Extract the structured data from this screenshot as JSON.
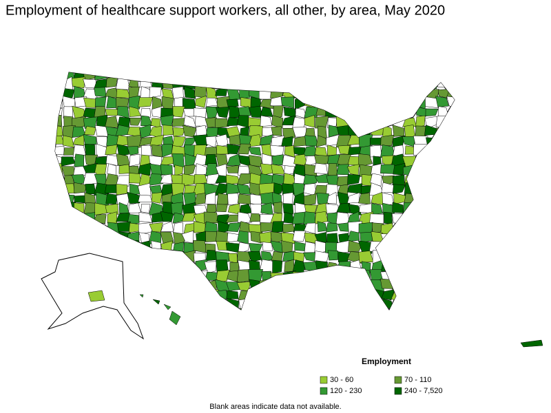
{
  "title": "Employment of healthcare support workers, all other, by area, May 2020",
  "legend": {
    "title": "Employment",
    "items": [
      {
        "label": "30 - 60",
        "color": "#99cc33"
      },
      {
        "label": "70 - 110",
        "color": "#669933"
      },
      {
        "label": "120 - 230",
        "color": "#339933"
      },
      {
        "label": "240 - 7,520",
        "color": "#006600"
      }
    ]
  },
  "note": "Blank areas indicate data not available."
}
